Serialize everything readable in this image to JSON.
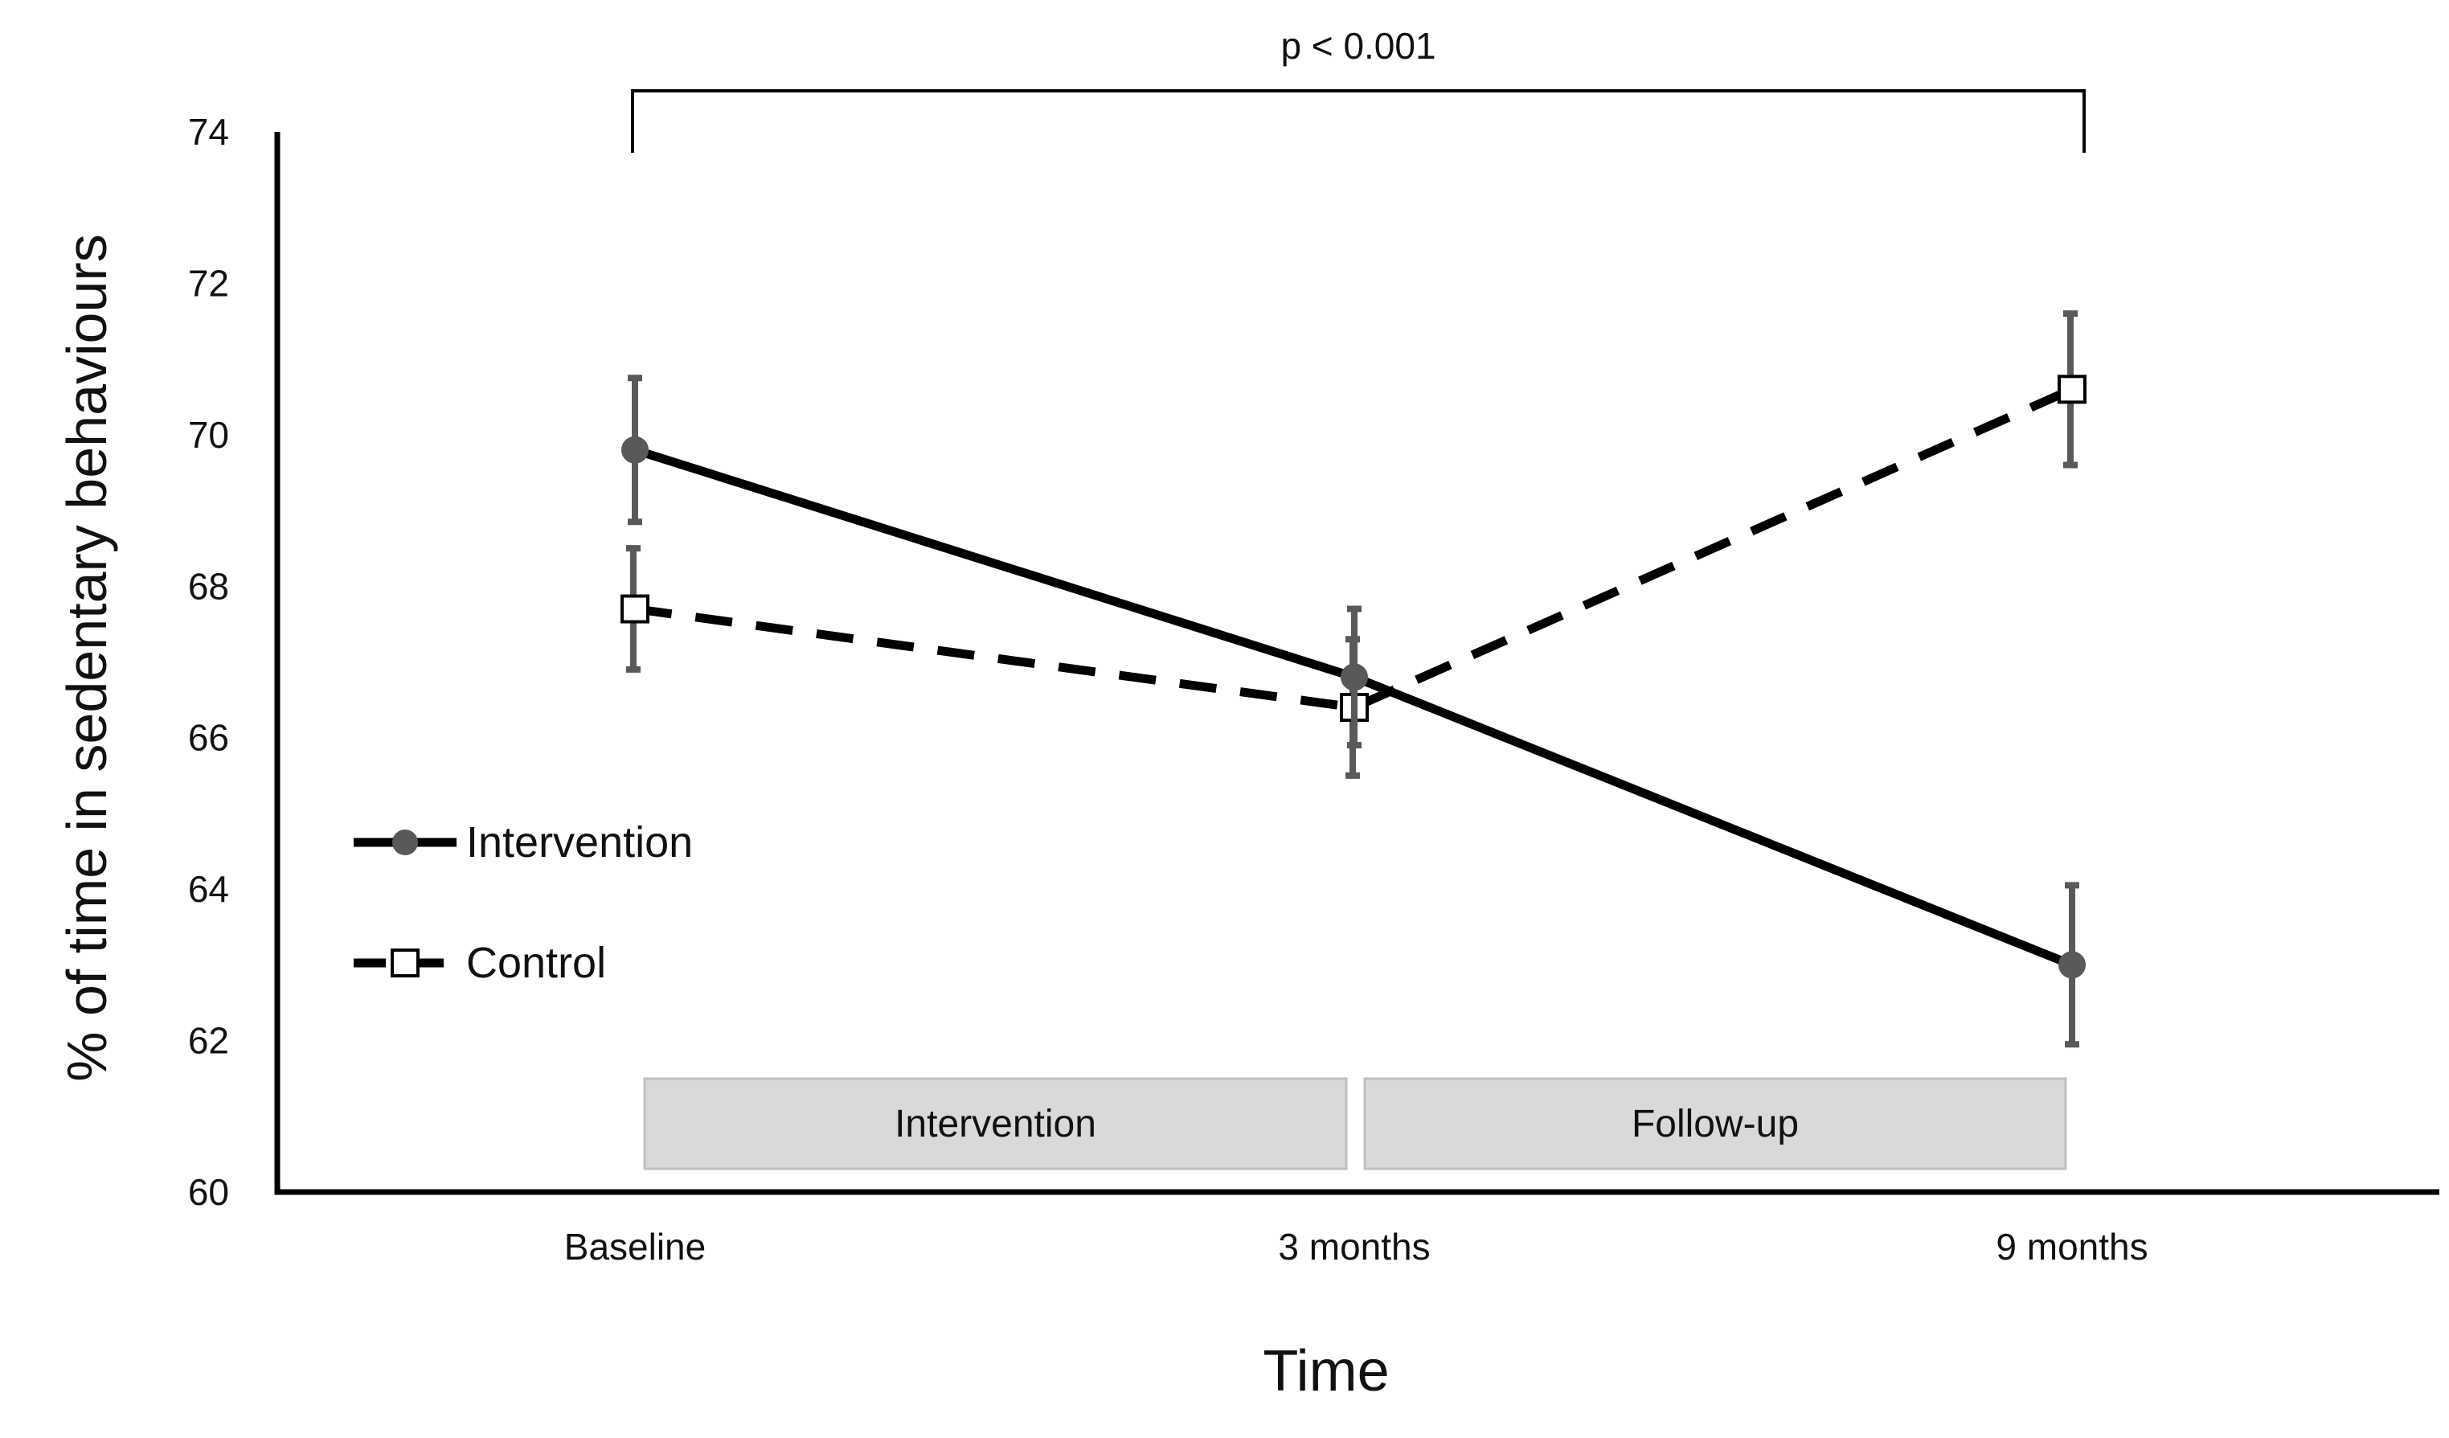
{
  "chart_data": {
    "type": "line",
    "title": "",
    "xlabel": "Time",
    "ylabel": "% of time in sedentary behaviours",
    "categories": [
      "Baseline",
      "3 months",
      "9 months"
    ],
    "ylim": [
      60,
      74
    ],
    "yticks": [
      60,
      62,
      64,
      66,
      68,
      70,
      72,
      74
    ],
    "series": [
      {
        "name": "Intervention",
        "values": [
          69.8,
          66.8,
          63.0
        ],
        "error": [
          0.95,
          0.9,
          1.05
        ],
        "line_style": "solid",
        "marker": "filled-circle",
        "color": "#000000",
        "marker_color": "#595959"
      },
      {
        "name": "Control",
        "values": [
          67.7,
          66.4,
          70.6
        ],
        "error": [
          0.8,
          0.9,
          1.0
        ],
        "line_style": "dashed",
        "marker": "open-square",
        "color": "#000000",
        "marker_color": "#ffffff"
      }
    ],
    "phases": [
      {
        "label": "Intervention",
        "from": 0,
        "to": 1
      },
      {
        "label": "Follow-up",
        "from": 1,
        "to": 2
      }
    ],
    "significance": {
      "label": "p < 0.001",
      "from": 0,
      "to": 2
    },
    "legend_position": "left-middle",
    "grid": false,
    "colors": {
      "error_bar": "#595959",
      "phase_fill": "#d9d9d9",
      "phase_stroke": "#bfbfbf",
      "axis": "#000000"
    }
  }
}
